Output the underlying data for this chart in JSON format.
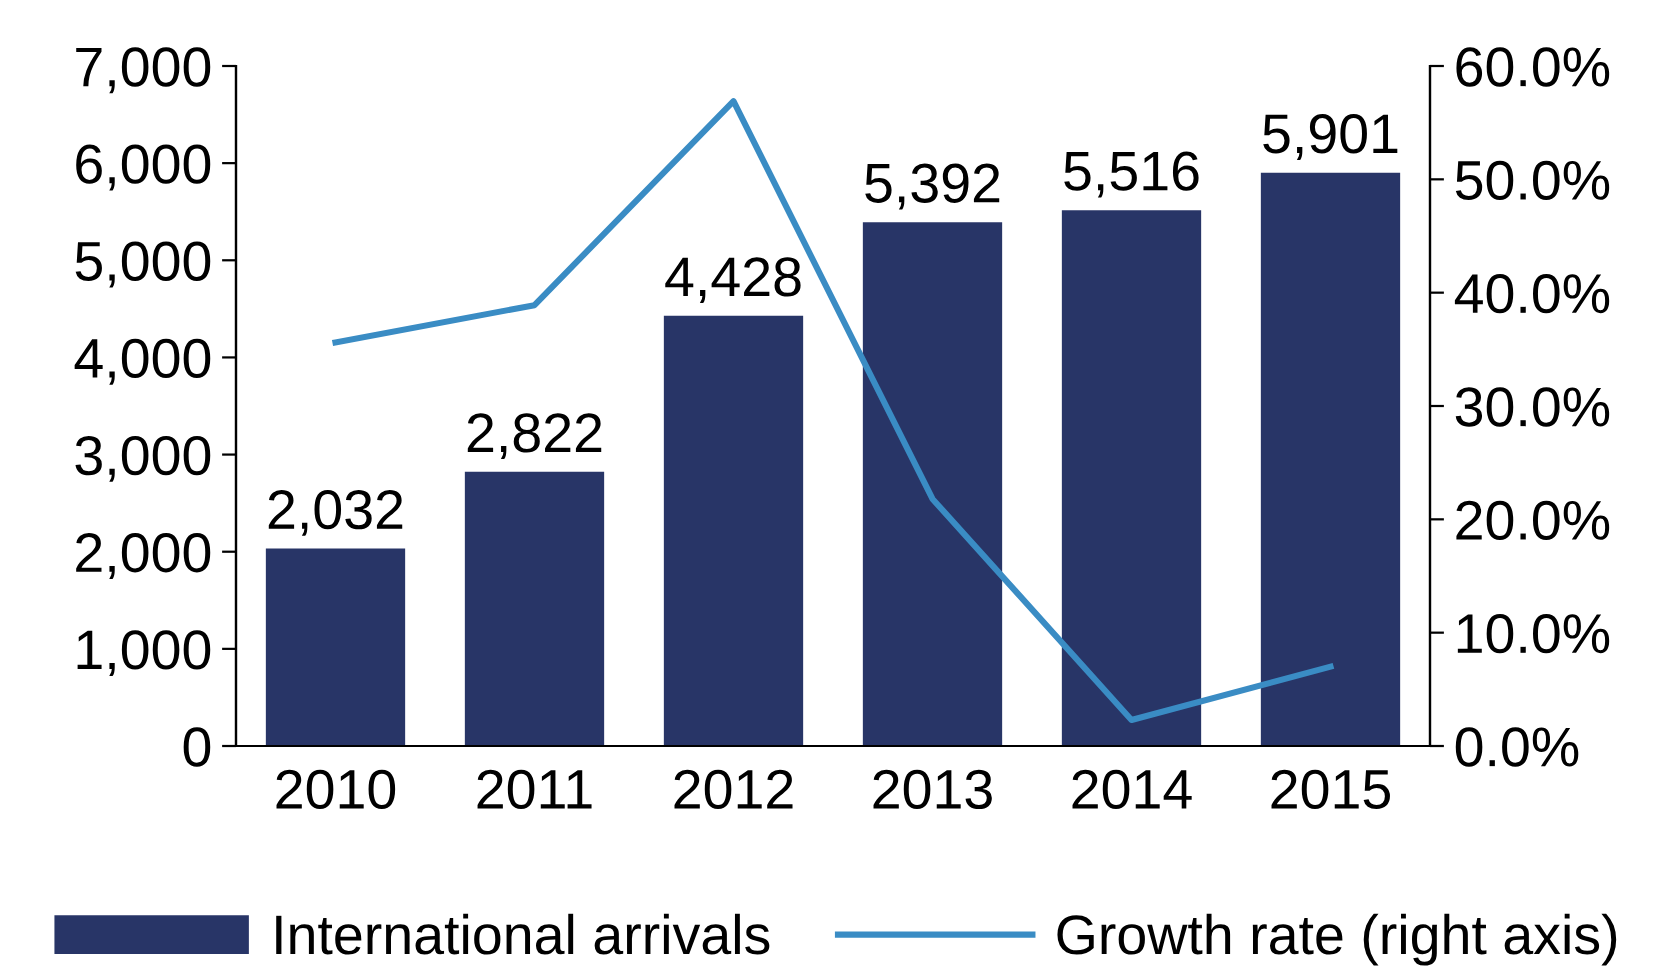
{
  "chart_data": {
    "type": "bar",
    "categories": [
      "2010",
      "2011",
      "2012",
      "2013",
      "2014",
      "2015"
    ],
    "series": [
      {
        "name": "International arrivals",
        "type": "bar",
        "color": "#283567",
        "values": [
          2032,
          2822,
          4428,
          5392,
          5516,
          5901
        ],
        "value_labels": [
          "2,032",
          "2,822",
          "4,428",
          "5,392",
          "5,516",
          "5,901"
        ]
      },
      {
        "name": "Growth rate (right axis)",
        "type": "line",
        "axis": "y2",
        "color": "#3a8cc4",
        "values": [
          35.6,
          38.9,
          56.9,
          21.8,
          2.3,
          7.0
        ]
      }
    ],
    "ylim": [
      0,
      7000
    ],
    "yticks": [
      {
        "value": 0,
        "label": "0"
      },
      {
        "value": 1000,
        "label": "1,000"
      },
      {
        "value": 2000,
        "label": "2,000"
      },
      {
        "value": 3000,
        "label": "3,000"
      },
      {
        "value": 4000,
        "label": "4,000"
      },
      {
        "value": 5000,
        "label": "5,000"
      },
      {
        "value": 6000,
        "label": "6,000"
      },
      {
        "value": 7000,
        "label": "7,000"
      }
    ],
    "y2lim": [
      0,
      60
    ],
    "y2ticks": [
      {
        "value": 0,
        "label": "0.0%"
      },
      {
        "value": 10,
        "label": "10.0%"
      },
      {
        "value": 20,
        "label": "20.0%"
      },
      {
        "value": 30,
        "label": "30.0%"
      },
      {
        "value": 40,
        "label": "40.0%"
      },
      {
        "value": 50,
        "label": "50.0%"
      },
      {
        "value": 60,
        "label": "60.0%"
      }
    ],
    "grid": false,
    "legend": "bottom",
    "marker": "none",
    "line_style": "solid"
  }
}
